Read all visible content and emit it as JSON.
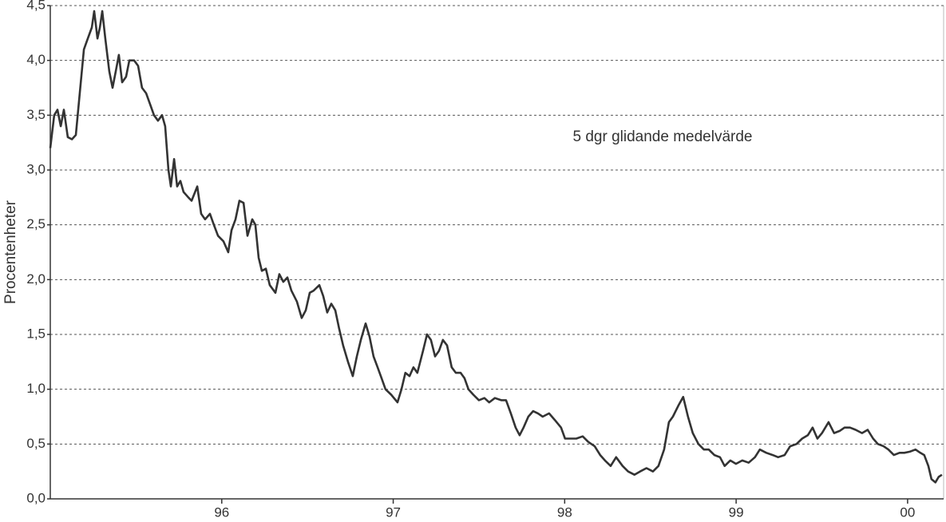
{
  "chart_data": {
    "type": "line",
    "ylabel": "Procentenheter",
    "annotation": "5 dgr glidande medelvärde",
    "color": "#333333",
    "grid": true,
    "xlim": [
      1995.0,
      2000.21
    ],
    "xticks": [
      {
        "value": 1996,
        "label": "96"
      },
      {
        "value": 1997,
        "label": "97"
      },
      {
        "value": 1998,
        "label": "98"
      },
      {
        "value": 1999,
        "label": "99"
      },
      {
        "value": 2000,
        "label": "00"
      }
    ],
    "ylim": [
      0,
      4.5
    ],
    "yticks": [
      {
        "value": 0,
        "label": "0,0"
      },
      {
        "value": 0.5,
        "label": "0,5"
      },
      {
        "value": 1,
        "label": "1,0"
      },
      {
        "value": 1.5,
        "label": "1,5"
      },
      {
        "value": 2,
        "label": "2,0"
      },
      {
        "value": 2.5,
        "label": "2,5"
      },
      {
        "value": 3,
        "label": "3,0"
      },
      {
        "value": 3.5,
        "label": "3,5"
      },
      {
        "value": 4,
        "label": "4,0"
      },
      {
        "value": 4.5,
        "label": "4,5"
      }
    ],
    "x": [
      1995.0,
      1995.023,
      1995.042,
      1995.061,
      1995.079,
      1995.102,
      1995.126,
      1995.149,
      1995.172,
      1995.196,
      1995.219,
      1995.242,
      1995.256,
      1995.275,
      1995.289,
      1995.303,
      1995.321,
      1995.344,
      1995.363,
      1995.382,
      1995.4,
      1995.419,
      1995.442,
      1995.461,
      1995.489,
      1995.512,
      1995.535,
      1995.559,
      1995.582,
      1995.605,
      1995.628,
      1995.652,
      1995.67,
      1995.689,
      1995.703,
      1995.722,
      1995.74,
      1995.759,
      1995.777,
      1995.805,
      1995.824,
      1995.857,
      1995.88,
      1995.903,
      1995.931,
      1995.954,
      1995.978,
      1996.01,
      1996.038,
      1996.057,
      1996.08,
      1996.103,
      1996.127,
      1996.15,
      1996.178,
      1996.196,
      1996.215,
      1996.234,
      1996.257,
      1996.28,
      1996.313,
      1996.336,
      1996.359,
      1996.383,
      1996.406,
      1996.438,
      1996.466,
      1996.49,
      1996.513,
      1996.536,
      1996.569,
      1996.592,
      1996.615,
      1996.639,
      1996.662,
      1996.685,
      1996.708,
      1996.736,
      1996.764,
      1996.788,
      1996.811,
      1996.839,
      1996.862,
      1996.885,
      1996.909,
      1996.932,
      1996.955,
      1996.988,
      1997.025,
      1997.048,
      1997.071,
      1997.095,
      1997.118,
      1997.141,
      1997.174,
      1997.197,
      1997.22,
      1997.244,
      1997.267,
      1997.29,
      1997.314,
      1997.341,
      1997.365,
      1997.393,
      1997.416,
      1997.439,
      1997.467,
      1997.5,
      1997.532,
      1997.56,
      1997.593,
      1997.63,
      1997.658,
      1997.686,
      1997.714,
      1997.737,
      1997.76,
      1997.788,
      1997.816,
      1997.844,
      1997.872,
      1997.909,
      1997.942,
      1997.979,
      1998.002,
      1998.035,
      1998.068,
      1998.105,
      1998.137,
      1998.175,
      1998.207,
      1998.235,
      1998.268,
      1998.3,
      1998.338,
      1998.37,
      1998.407,
      1998.44,
      1998.477,
      1998.515,
      1998.547,
      1998.58,
      1998.608,
      1998.631,
      1998.663,
      1998.691,
      1998.719,
      1998.747,
      1998.78,
      1998.812,
      1998.84,
      1998.873,
      1998.906,
      1998.933,
      1998.966,
      1998.999,
      1999.036,
      1999.073,
      1999.11,
      1999.138,
      1999.176,
      1999.213,
      1999.245,
      1999.283,
      1999.315,
      1999.352,
      1999.385,
      1999.418,
      1999.446,
      1999.474,
      1999.501,
      1999.539,
      1999.571,
      1999.604,
      1999.632,
      1999.664,
      1999.697,
      1999.734,
      1999.767,
      1999.799,
      1999.827,
      1999.86,
      1999.888,
      1999.92,
      1999.953,
      1999.981,
      2000.013,
      2000.046,
      2000.074,
      2000.097,
      2000.121,
      2000.139,
      2000.162,
      2000.181,
      2000.2
    ],
    "values": [
      3.2,
      3.5,
      3.55,
      3.4,
      3.55,
      3.3,
      3.28,
      3.32,
      3.7,
      4.1,
      4.2,
      4.3,
      4.45,
      4.2,
      4.3,
      4.45,
      4.2,
      3.9,
      3.75,
      3.9,
      4.05,
      3.8,
      3.85,
      4.0,
      4.0,
      3.95,
      3.75,
      3.7,
      3.6,
      3.5,
      3.45,
      3.5,
      3.4,
      3.0,
      2.85,
      3.1,
      2.85,
      2.9,
      2.8,
      2.75,
      2.72,
      2.85,
      2.6,
      2.55,
      2.6,
      2.5,
      2.4,
      2.35,
      2.25,
      2.45,
      2.55,
      2.72,
      2.7,
      2.4,
      2.55,
      2.5,
      2.2,
      2.08,
      2.1,
      1.95,
      1.88,
      2.05,
      1.98,
      2.02,
      1.9,
      1.8,
      1.65,
      1.72,
      1.88,
      1.9,
      1.95,
      1.85,
      1.7,
      1.78,
      1.72,
      1.55,
      1.4,
      1.25,
      1.12,
      1.3,
      1.45,
      1.6,
      1.48,
      1.3,
      1.2,
      1.1,
      1.0,
      0.95,
      0.88,
      1.0,
      1.15,
      1.12,
      1.2,
      1.15,
      1.35,
      1.5,
      1.45,
      1.3,
      1.35,
      1.45,
      1.4,
      1.2,
      1.15,
      1.15,
      1.1,
      1.0,
      0.95,
      0.9,
      0.92,
      0.88,
      0.92,
      0.9,
      0.9,
      0.78,
      0.65,
      0.58,
      0.65,
      0.75,
      0.8,
      0.78,
      0.75,
      0.78,
      0.72,
      0.65,
      0.55,
      0.55,
      0.55,
      0.57,
      0.52,
      0.48,
      0.4,
      0.35,
      0.3,
      0.38,
      0.3,
      0.25,
      0.22,
      0.25,
      0.28,
      0.25,
      0.3,
      0.45,
      0.7,
      0.75,
      0.85,
      0.93,
      0.75,
      0.6,
      0.5,
      0.45,
      0.45,
      0.4,
      0.38,
      0.3,
      0.35,
      0.32,
      0.35,
      0.33,
      0.38,
      0.45,
      0.42,
      0.4,
      0.38,
      0.4,
      0.48,
      0.5,
      0.55,
      0.58,
      0.65,
      0.55,
      0.6,
      0.7,
      0.6,
      0.62,
      0.65,
      0.65,
      0.63,
      0.6,
      0.63,
      0.55,
      0.5,
      0.48,
      0.45,
      0.4,
      0.42,
      0.42,
      0.43,
      0.45,
      0.42,
      0.4,
      0.3,
      0.18,
      0.15,
      0.2,
      0.22
    ]
  }
}
